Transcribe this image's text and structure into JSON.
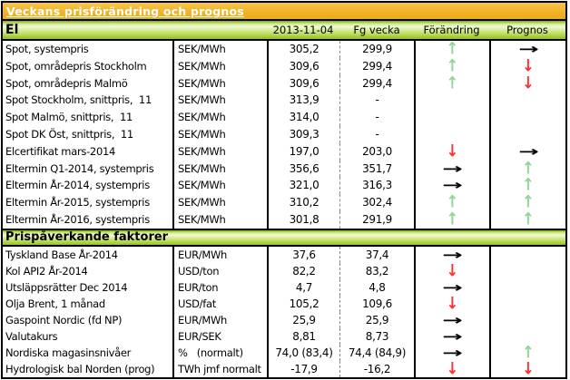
{
  "title": {
    "text": "Veckans prisförändring och prognos"
  },
  "columns": {
    "date": "2013-11-04",
    "prev_week": "Fg vecka",
    "change": "Förändring",
    "forecast": "Prognos"
  },
  "sections": [
    {
      "name": "El",
      "rows": [
        {
          "label": "Spot, systempris",
          "unit": "SEK/MWh",
          "current": "305,2",
          "previous": "299,9",
          "change": "up",
          "forecast": "right"
        },
        {
          "label": "Spot, områdepris Stockholm",
          "unit": "SEK/MWh",
          "current": "309,6",
          "previous": "299,4",
          "change": "up",
          "forecast": "down"
        },
        {
          "label": "Spot, områdepris Malmö",
          "unit": "SEK/MWh",
          "current": "309,6",
          "previous": "299,4",
          "change": "up",
          "forecast": "down"
        },
        {
          "label": "Spot Stockholm, snittpris,  11",
          "unit": "SEK/MWh",
          "current": "313,9",
          "previous": "-",
          "change": "none",
          "forecast": "none"
        },
        {
          "label": "Spot Malmö, snittpris,  11",
          "unit": "SEK/MWh",
          "current": "314,0",
          "previous": "-",
          "change": "none",
          "forecast": "none"
        },
        {
          "label": "Spot DK Öst, snittpris,  11",
          "unit": "SEK/MWh",
          "current": "309,3",
          "previous": "-",
          "change": "none",
          "forecast": "none"
        },
        {
          "label": "Elcertifikat mars-2014",
          "unit": "SEK/MWh",
          "current": "197,0",
          "previous": "203,0",
          "change": "down",
          "forecast": "right"
        },
        {
          "label": "Eltermin Q1-2014, systempris",
          "unit": "SEK/MWh",
          "current": "356,6",
          "previous": "351,7",
          "change": "right",
          "forecast": "up"
        },
        {
          "label": "Eltermin År-2014, systempris",
          "unit": "SEK/MWh",
          "current": "321,0",
          "previous": "316,3",
          "change": "right",
          "forecast": "up"
        },
        {
          "label": "Eltermin År-2015, systempris",
          "unit": "SEK/MWh",
          "current": "310,2",
          "previous": "302,4",
          "change": "up",
          "forecast": "up"
        },
        {
          "label": "Eltermin År-2016, systempris",
          "unit": "SEK/MWh",
          "current": "301,8",
          "previous": "291,9",
          "change": "up",
          "forecast": "up"
        }
      ]
    },
    {
      "name": "Prispåverkande faktorer",
      "rows": [
        {
          "label": "Tyskland Base År-2014",
          "unit": "EUR/MWh",
          "current": "37,6",
          "previous": "37,4",
          "change": "right",
          "forecast": "none"
        },
        {
          "label": "Kol API2 År-2014",
          "unit": "USD/ton",
          "current": "82,2",
          "previous": "83,2",
          "change": "down",
          "forecast": "none"
        },
        {
          "label": "Utsläppsrätter Dec 2014",
          "unit": "EUR/ton",
          "current": "4,7",
          "previous": "4,8",
          "change": "right",
          "forecast": "none"
        },
        {
          "label": "Olja Brent, 1 månad",
          "unit": "USD/fat",
          "current": "105,2",
          "previous": "109,6",
          "change": "down",
          "forecast": "none"
        },
        {
          "label": "Gaspoint Nordic (fd NP)",
          "unit": "EUR/MWh",
          "current": "25,9",
          "previous": "25,9",
          "change": "right",
          "forecast": "none"
        },
        {
          "label": "Valutakurs",
          "unit": "EUR/SEK",
          "current": "8,81",
          "previous": "8,73",
          "change": "right",
          "forecast": "none"
        },
        {
          "label": "Nordiska magasinsnivåer",
          "unit": "%   (normalt)",
          "current": "74,0 (83,4)",
          "previous": "74,4 (84,9)",
          "change": "right",
          "forecast": "up"
        },
        {
          "label": "Hydrologisk bal Norden (prog)",
          "unit": "TWh jmf normalt",
          "current": "-17,9",
          "previous": "-16,2",
          "change": "down",
          "forecast": "down"
        }
      ]
    }
  ],
  "arrow_glyphs": {
    "up": "↑",
    "down": "↓",
    "right": "→",
    "none": ""
  },
  "arrow_colors": {
    "up": "#8fd694",
    "down": "#ff2f2f",
    "right": "#000000",
    "none": "#000000"
  },
  "colors": {
    "title_band": "#f2b32a",
    "section_band_light": "#f2f9d8",
    "section_band_dark": "#94c222",
    "border": "#000000",
    "dashed_divider": "#8a8a8a",
    "arrow_up": "#8fd694",
    "arrow_down": "#ff2f2f",
    "arrow_right": "#000000"
  }
}
